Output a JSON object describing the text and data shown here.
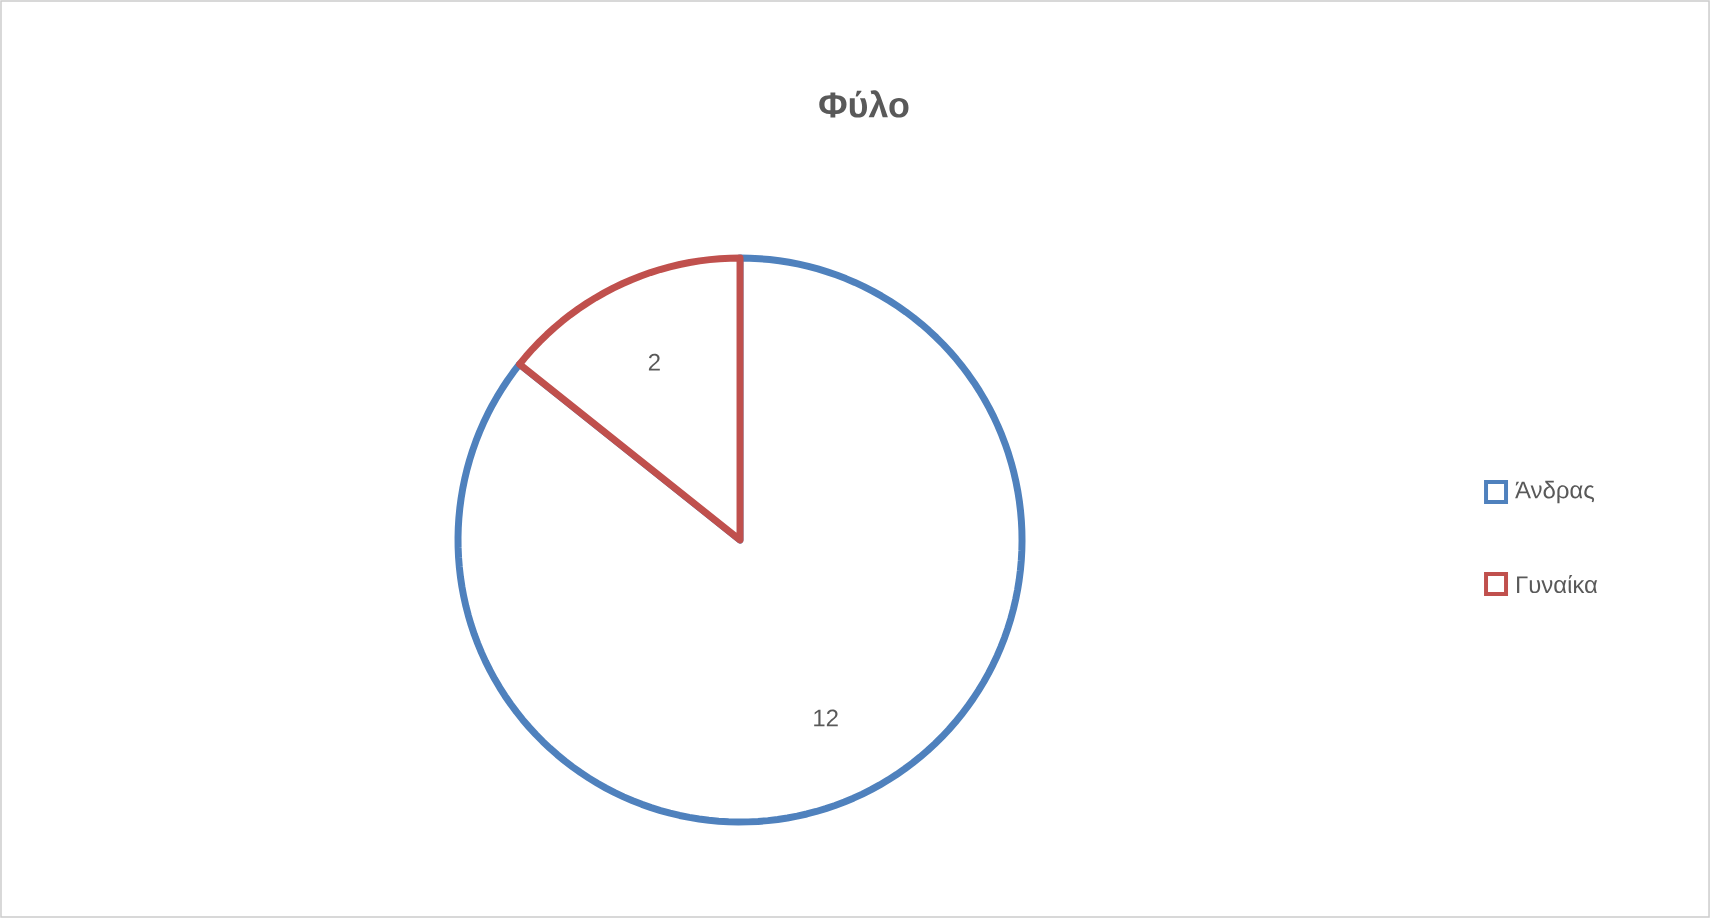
{
  "chart_data": {
    "type": "pie",
    "title": "Φύλο",
    "categories": [
      "Άνδρας",
      "Γυναίκα"
    ],
    "values": [
      12,
      2
    ],
    "colors": [
      "#4f81bd",
      "#c0504d"
    ],
    "data_labels": true,
    "legend": "right"
  }
}
